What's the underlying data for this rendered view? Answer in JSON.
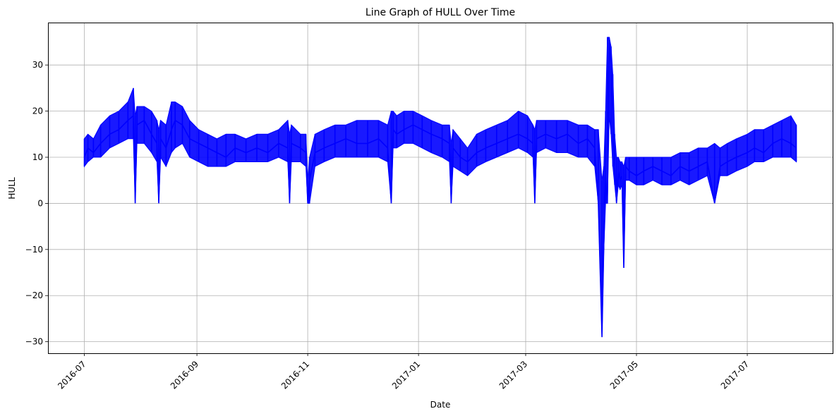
{
  "chart_data": {
    "type": "line",
    "title": "Line Graph of HULL Over Time",
    "xlabel": "Date",
    "ylabel": "HULL",
    "x_ticks": [
      "2016-07",
      "2016-09",
      "2016-11",
      "2017-01",
      "2017-03",
      "2017-05",
      "2017-07"
    ],
    "x_tick_dates": [
      "2016-07-01",
      "2016-09-01",
      "2016-11-01",
      "2017-01-01",
      "2017-03-01",
      "2017-05-01",
      "2017-07-01"
    ],
    "y_ticks": [
      -30,
      -20,
      -10,
      0,
      10,
      20,
      30
    ],
    "xlim": [
      "2016-06-11",
      "2017-08-17"
    ],
    "ylim": [
      -32.5,
      39.2
    ],
    "grid": true,
    "color": "#0000ff",
    "series": [
      {
        "x": [
          "2016-07-01",
          "2016-07-03",
          "2016-07-06",
          "2016-07-10",
          "2016-07-15",
          "2016-07-20",
          "2016-07-25",
          "2016-07-28",
          "2016-07-29",
          "2016-07-30",
          "2016-08-03",
          "2016-08-07",
          "2016-08-10",
          "2016-08-11",
          "2016-08-12",
          "2016-08-15",
          "2016-08-18",
          "2016-08-20",
          "2016-08-24",
          "2016-08-28",
          "2016-09-02",
          "2016-09-07",
          "2016-09-12",
          "2016-09-17",
          "2016-09-22",
          "2016-09-28",
          "2016-10-04",
          "2016-10-10",
          "2016-10-16",
          "2016-10-21",
          "2016-10-22",
          "2016-10-23",
          "2016-10-28",
          "2016-10-31",
          "2016-11-01",
          "2016-11-02",
          "2016-11-05",
          "2016-11-10",
          "2016-11-16",
          "2016-11-22",
          "2016-11-28",
          "2016-12-04",
          "2016-12-10",
          "2016-12-15",
          "2016-12-17",
          "2016-12-18",
          "2016-12-20",
          "2016-12-24",
          "2016-12-29",
          "2017-01-03",
          "2017-01-08",
          "2017-01-14",
          "2017-01-18",
          "2017-01-19",
          "2017-01-20",
          "2017-01-24",
          "2017-01-28",
          "2017-02-02",
          "2017-02-07",
          "2017-02-13",
          "2017-02-19",
          "2017-02-25",
          "2017-03-02",
          "2017-03-05",
          "2017-03-06",
          "2017-03-07",
          "2017-03-12",
          "2017-03-18",
          "2017-03-24",
          "2017-03-30",
          "2017-04-04",
          "2017-04-08",
          "2017-04-10",
          "2017-04-12",
          "2017-04-13",
          "2017-04-14",
          "2017-04-15",
          "2017-04-16",
          "2017-04-17",
          "2017-04-18",
          "2017-04-19",
          "2017-04-20",
          "2017-04-21",
          "2017-04-22",
          "2017-04-23",
          "2017-04-24",
          "2017-04-25",
          "2017-04-27",
          "2017-05-01",
          "2017-05-05",
          "2017-05-10",
          "2017-05-15",
          "2017-05-20",
          "2017-05-25",
          "2017-05-30",
          "2017-06-04",
          "2017-06-09",
          "2017-06-13",
          "2017-06-16",
          "2017-06-20",
          "2017-06-25",
          "2017-07-01",
          "2017-07-05",
          "2017-07-10",
          "2017-07-15",
          "2017-07-20",
          "2017-07-25",
          "2017-07-28"
        ],
        "values": [
          10,
          12,
          11,
          13,
          15,
          16,
          18,
          19,
          0,
          17,
          18,
          15,
          13,
          0,
          14,
          12,
          16,
          18,
          17,
          14,
          13,
          12,
          11,
          10,
          12,
          11,
          12,
          11,
          13,
          12,
          0,
          13,
          12,
          11,
          0,
          5,
          11,
          12,
          13,
          14,
          13,
          13,
          14,
          12,
          0,
          16,
          15,
          16,
          17,
          16,
          15,
          14,
          13,
          0,
          12,
          10,
          9,
          11,
          12,
          13,
          14,
          15,
          14,
          13,
          0,
          14,
          15,
          14,
          15,
          13,
          14,
          12,
          0,
          -29,
          -9,
          6,
          0,
          35,
          30,
          20,
          8,
          0,
          7,
          5,
          6,
          -14,
          8,
          7,
          6,
          7,
          8,
          7,
          6,
          8,
          7,
          8,
          9,
          0,
          8,
          9,
          10,
          11,
          12,
          11,
          13,
          14,
          13,
          12
        ],
        "upper": [
          14,
          15,
          14,
          17,
          19,
          20,
          22,
          25,
          19,
          21,
          21,
          20,
          18,
          16,
          18,
          17,
          22,
          22,
          21,
          18,
          16,
          15,
          14,
          15,
          15,
          14,
          15,
          15,
          16,
          18,
          15,
          17,
          15,
          15,
          5,
          10,
          15,
          16,
          17,
          17,
          18,
          18,
          18,
          17,
          20,
          20,
          19,
          20,
          20,
          19,
          18,
          17,
          17,
          13,
          16,
          14,
          12,
          15,
          16,
          17,
          18,
          20,
          19,
          17,
          16,
          18,
          18,
          18,
          18,
          17,
          17,
          16,
          16,
          5,
          8,
          20,
          36,
          36,
          34,
          28,
          15,
          10,
          10,
          9,
          9,
          8,
          10,
          10,
          10,
          10,
          10,
          10,
          10,
          11,
          11,
          12,
          12,
          13,
          12,
          13,
          14,
          15,
          16,
          16,
          17,
          18,
          19,
          17
        ],
        "lower": [
          8,
          9,
          10,
          10,
          12,
          13,
          14,
          14,
          0,
          13,
          13,
          11,
          9,
          0,
          10,
          8,
          11,
          12,
          13,
          10,
          9,
          8,
          8,
          8,
          9,
          9,
          9,
          9,
          10,
          9,
          0,
          9,
          9,
          8,
          0,
          0,
          8,
          9,
          10,
          10,
          10,
          10,
          10,
          9,
          0,
          12,
          12,
          13,
          13,
          12,
          11,
          10,
          9,
          0,
          8,
          7,
          6,
          8,
          9,
          10,
          11,
          12,
          11,
          10,
          0,
          11,
          12,
          11,
          11,
          10,
          10,
          8,
          0,
          -29,
          -10,
          0,
          0,
          19,
          15,
          8,
          4,
          0,
          4,
          3,
          4,
          -14,
          5,
          5,
          4,
          4,
          5,
          4,
          4,
          5,
          4,
          5,
          6,
          0,
          6,
          6,
          7,
          8,
          9,
          9,
          10,
          10,
          10,
          9
        ]
      }
    ]
  }
}
